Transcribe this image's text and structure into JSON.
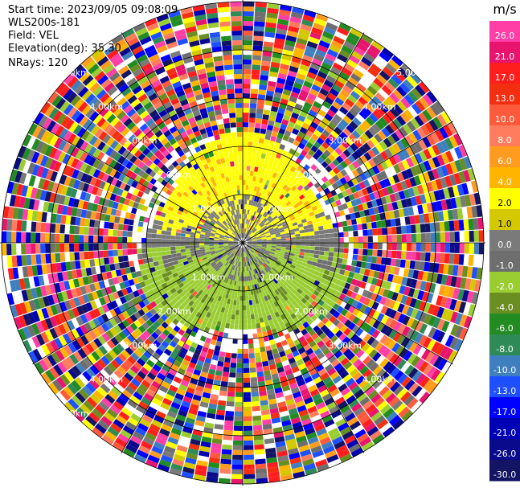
{
  "header": {
    "start_time": "Start time: 2023/09/05 09:08:09",
    "instrument": "WLS200s-181",
    "field": "Field: VEL",
    "elevation": "Elevation(deg): 35.30",
    "nrays": "NRays: 120"
  },
  "colorbar": {
    "unit": "m/s",
    "ticks": [
      "26.0",
      "21.0",
      "17.0",
      "13.0",
      "10.0",
      "8.0",
      "6.0",
      "4.0",
      "2.0",
      "1.0",
      "0.0",
      "-1.0",
      "-2.0",
      "-4.0",
      "-6.0",
      "-8.0",
      "-10.0",
      "-13.0",
      "-17.0",
      "-21.0",
      "-26.0",
      "-30.0"
    ],
    "colors": [
      "#ff3fa6",
      "#e8156e",
      "#ff1e1e",
      "#f22f10",
      "#ff5a3c",
      "#ff7d5e",
      "#ff9b1e",
      "#ffb400",
      "#ffff00",
      "#d4c800",
      "#7a7a7a",
      "#6e6e6e",
      "#9acd32",
      "#6b8e23",
      "#228b22",
      "#2e8b57",
      "#3f7fbf",
      "#1e50ff",
      "#0000ff",
      "#0000b4",
      "#0a0a8c",
      "#141464"
    ]
  },
  "chart_data": {
    "type": "ppi",
    "field": "VEL",
    "nrays": 120,
    "rings_km": [
      "1.00km",
      "2.00km",
      "3.00km",
      "4.00km",
      "5.00km"
    ],
    "range_labels": [
      {
        "text": "5.00km",
        "angle_deg": 315,
        "ring": 5
      },
      {
        "text": "4.00km",
        "angle_deg": 315,
        "ring": 4
      },
      {
        "text": "3.00km",
        "angle_deg": 315,
        "ring": 3
      },
      {
        "text": "2.00km",
        "angle_deg": 315,
        "ring": 2
      },
      {
        "text": "1.00km",
        "angle_deg": 315,
        "ring": 1
      },
      {
        "text": "1.00km",
        "angle_deg": 45,
        "ring": 1
      },
      {
        "text": "2.00km",
        "angle_deg": 45,
        "ring": 2
      },
      {
        "text": "3.00km",
        "angle_deg": 45,
        "ring": 3
      },
      {
        "text": "4.00km",
        "angle_deg": 45,
        "ring": 4
      },
      {
        "text": "5.00km",
        "angle_deg": 45,
        "ring": 5
      },
      {
        "text": "1.00km",
        "angle_deg": 225,
        "ring": 1
      },
      {
        "text": "2.00km",
        "angle_deg": 225,
        "ring": 2
      },
      {
        "text": "3.00km",
        "angle_deg": 225,
        "ring": 3
      },
      {
        "text": "4.00km",
        "angle_deg": 225,
        "ring": 4
      },
      {
        "text": "5.00km",
        "angle_deg": 225,
        "ring": 5
      },
      {
        "text": "1.00km",
        "angle_deg": 135,
        "ring": 1
      },
      {
        "text": "2.00km",
        "angle_deg": 135,
        "ring": 2
      },
      {
        "text": "3.00km",
        "angle_deg": 135,
        "ring": 3
      },
      {
        "text": "4.00km",
        "angle_deg": 135,
        "ring": 4
      }
    ],
    "patterns": {
      "near_north": "positive 2.0 to 4.0 (yellow)",
      "near_south": "negative -2.0 to -4.0 (green)",
      "near_east_west_core": "near 0.0 (gray)",
      "far_range": "noise (mixed colors)"
    }
  }
}
